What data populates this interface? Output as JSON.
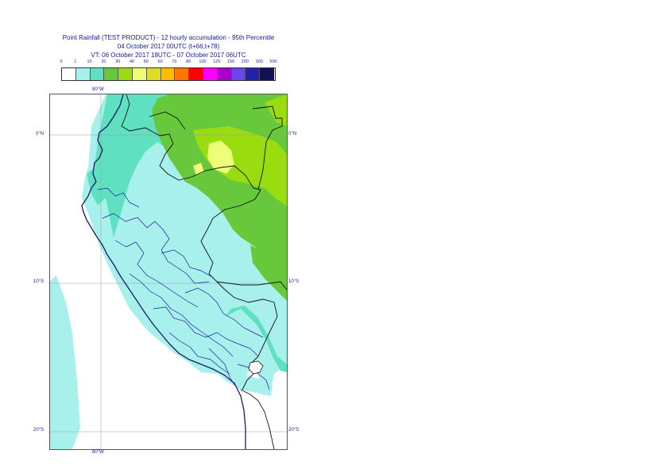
{
  "title": {
    "line1": "Point Rainfall (TEST PRODUCT) - 12 hourly accumulation - 95th Percentile",
    "line2": "04 October 2017 00UTC (t+66,t+78)",
    "line3": "VT: 06 October 2017 18UTC - 07 October 2017 06UTC"
  },
  "legend": {
    "labels": [
      "0",
      "1",
      "10",
      "20",
      "30",
      "40",
      "50",
      "60",
      "70",
      "80",
      "100",
      "125",
      "150",
      "200",
      "300",
      "500"
    ],
    "colors": [
      "#ffffff",
      "#a8f0ec",
      "#5fe0c0",
      "#66c83a",
      "#99dd11",
      "#eeff77",
      "#dddd22",
      "#ffbb00",
      "#ff7700",
      "#ff0000",
      "#ff00ff",
      "#aa00cc",
      "#6a44ee",
      "#2222aa",
      "#111155"
    ]
  },
  "axes": {
    "lon_top": "80°W",
    "lon_bottom": "80°W",
    "lat_0_left": "0°N",
    "lat_0_right": "0°N",
    "lat_10_left": "10°S",
    "lat_10_right": "10°S",
    "lat_20_left": "20°S",
    "lat_20_right": "20°S"
  }
}
